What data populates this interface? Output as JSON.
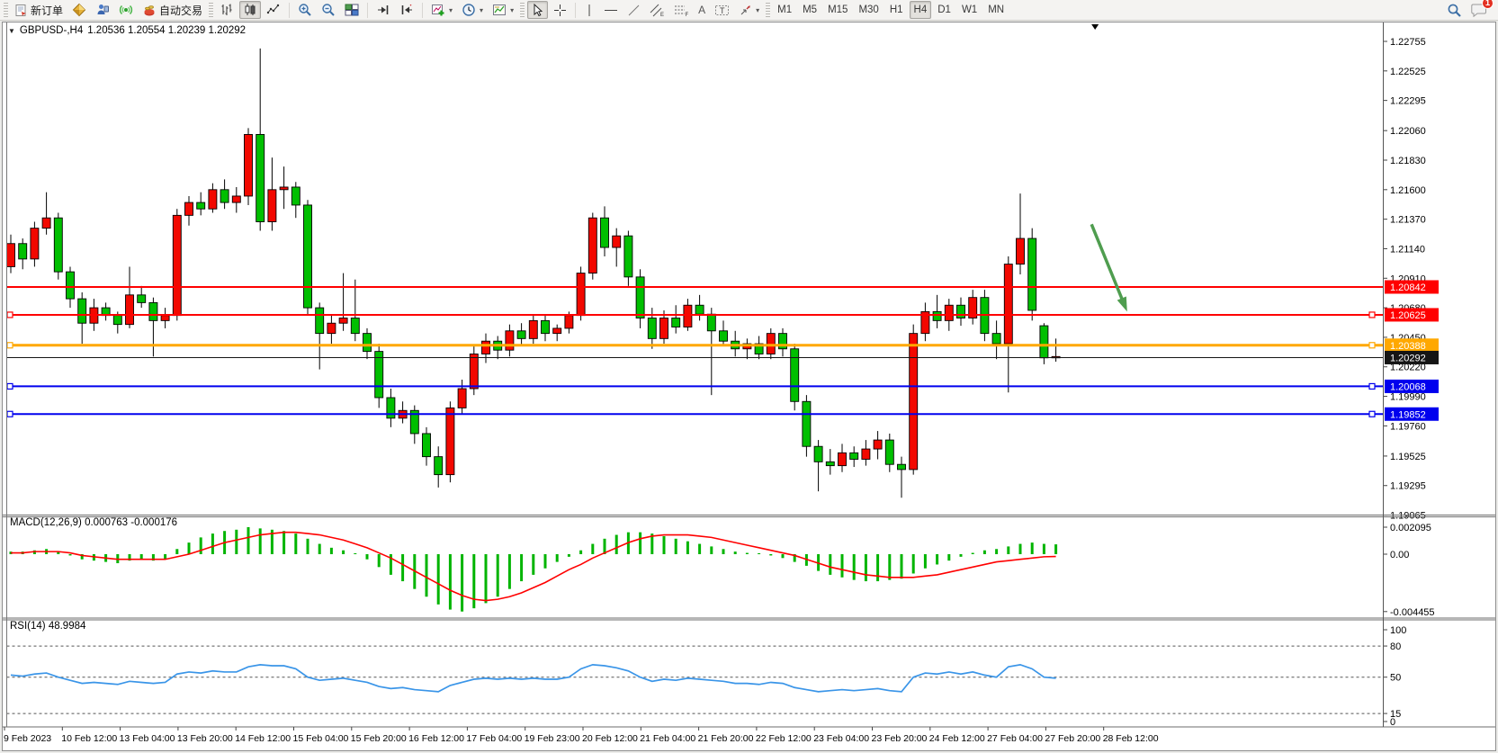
{
  "toolbar": {
    "new_order_label": "新订单",
    "auto_trading_label": "自动交易",
    "timeframes": [
      "M1",
      "M5",
      "M15",
      "M30",
      "H1",
      "H4",
      "D1",
      "W1",
      "MN"
    ],
    "active_timeframe": "H4",
    "notification_count": "1"
  },
  "chart": {
    "symbol_title": "GBPUSD-,H4",
    "ohlc_text": "1.20536 1.20554 1.20239 1.20292",
    "macd_label": "MACD(12,26,9) 0.000763 -0.000176",
    "rsi_label": "RSI(14) 48.9984"
  },
  "chart_data": {
    "type": "candlestick",
    "symbol": "GBPUSD-",
    "period": "H4",
    "colors": {
      "bull": "#f20800",
      "bear": "#00bf00",
      "wick": "#000000",
      "macd_hist": "#00b400",
      "macd_signal": "#ff0000",
      "rsi_line": "#3a95e8",
      "arrow": "#4f9d4f",
      "axis_text": "#000000"
    },
    "price_axis_ticks": [
      "1.22755",
      "1.22525",
      "1.22295",
      "1.22060",
      "1.21830",
      "1.21600",
      "1.21370",
      "1.21140",
      "1.20910",
      "1.20680",
      "1.20450",
      "1.20220",
      "1.19990",
      "1.19760",
      "1.19525",
      "1.19295",
      "1.19065"
    ],
    "horizontal_lines": [
      {
        "label": "1.20842",
        "price": 1.20842,
        "color": "#ff0000",
        "width": 2,
        "handles": false
      },
      {
        "label": "1.20625",
        "price": 1.20625,
        "color": "#ff0000",
        "width": 2,
        "handles": true
      },
      {
        "label": "1.20388",
        "price": 1.20388,
        "color": "#ffa800",
        "width": 3,
        "handles": true
      },
      {
        "label": "1.20292",
        "price": 1.20292,
        "color": "#151515",
        "width": 1,
        "handles": false
      },
      {
        "label": "1.20068",
        "price": 1.20068,
        "color": "#0000ee",
        "width": 2,
        "handles": true
      },
      {
        "label": "1.19852",
        "price": 1.19852,
        "color": "#0000ee",
        "width": 2,
        "handles": true
      }
    ],
    "date_labels": [
      "9 Feb 2023",
      "10 Feb 12:00",
      "13 Feb 04:00",
      "13 Feb 20:00",
      "14 Feb 12:00",
      "15 Feb 04:00",
      "15 Feb 20:00",
      "16 Feb 12:00",
      "17 Feb 04:00",
      "19 Feb 23:00",
      "20 Feb 12:00",
      "21 Feb 04:00",
      "21 Feb 20:00",
      "22 Feb 12:00",
      "23 Feb 04:00",
      "23 Feb 20:00",
      "24 Feb 12:00",
      "27 Feb 04:00",
      "27 Feb 20:00",
      "28 Feb 12:00"
    ],
    "candles": [
      [
        1.21,
        1.2125,
        1.2095,
        1.2118
      ],
      [
        1.2118,
        1.2122,
        1.2098,
        1.2106
      ],
      [
        1.2106,
        1.2135,
        1.21,
        1.213
      ],
      [
        1.213,
        1.2158,
        1.2125,
        1.2138
      ],
      [
        1.2138,
        1.2142,
        1.209,
        1.2096
      ],
      [
        1.2096,
        1.21,
        1.2068,
        1.2075
      ],
      [
        1.2075,
        1.208,
        1.204,
        1.2056
      ],
      [
        1.2056,
        1.2075,
        1.205,
        1.2068
      ],
      [
        1.2068,
        1.2072,
        1.2058,
        1.2062
      ],
      [
        1.2062,
        1.2065,
        1.2048,
        1.2055
      ],
      [
        1.2055,
        1.21,
        1.2052,
        1.2078
      ],
      [
        1.2078,
        1.2085,
        1.2068,
        1.2072
      ],
      [
        1.2072,
        1.2076,
        1.203,
        1.2058
      ],
      [
        1.2058,
        1.2068,
        1.2052,
        1.2062
      ],
      [
        1.2062,
        1.2145,
        1.2058,
        1.214
      ],
      [
        1.214,
        1.2155,
        1.2132,
        1.215
      ],
      [
        1.215,
        1.2158,
        1.214,
        1.2145
      ],
      [
        1.2145,
        1.2165,
        1.2142,
        1.216
      ],
      [
        1.216,
        1.2168,
        1.2145,
        1.215
      ],
      [
        1.215,
        1.2162,
        1.2142,
        1.2155
      ],
      [
        1.2155,
        1.2208,
        1.2148,
        1.2203
      ],
      [
        1.2203,
        1.227,
        1.2128,
        1.2135
      ],
      [
        1.2135,
        1.2185,
        1.2128,
        1.216
      ],
      [
        1.216,
        1.2178,
        1.2145,
        1.2162
      ],
      [
        1.2162,
        1.2166,
        1.2138,
        1.2148
      ],
      [
        1.2148,
        1.2152,
        1.2062,
        1.2068
      ],
      [
        1.2068,
        1.2072,
        1.202,
        1.2048
      ],
      [
        1.2048,
        1.2062,
        1.204,
        1.2056
      ],
      [
        1.2056,
        1.2095,
        1.205,
        1.206
      ],
      [
        1.206,
        1.209,
        1.2042,
        1.2048
      ],
      [
        1.2048,
        1.2052,
        1.2028,
        1.2034
      ],
      [
        1.2034,
        1.204,
        1.199,
        1.1998
      ],
      [
        1.1998,
        1.2005,
        1.1975,
        1.1982
      ],
      [
        1.1982,
        1.1995,
        1.1978,
        1.1988
      ],
      [
        1.1988,
        1.1992,
        1.1962,
        1.197
      ],
      [
        1.197,
        1.1975,
        1.1945,
        1.1952
      ],
      [
        1.1952,
        1.196,
        1.1928,
        1.1938
      ],
      [
        1.1938,
        1.1995,
        1.1932,
        1.199
      ],
      [
        1.199,
        1.2012,
        1.1985,
        1.2005
      ],
      [
        1.2005,
        1.2038,
        1.2,
        1.2032
      ],
      [
        1.2032,
        1.2048,
        1.2025,
        1.2042
      ],
      [
        1.2042,
        1.2046,
        1.2028,
        1.2035
      ],
      [
        1.2035,
        1.2055,
        1.203,
        1.205
      ],
      [
        1.205,
        1.2056,
        1.2038,
        1.2044
      ],
      [
        1.2044,
        1.2062,
        1.204,
        1.2058
      ],
      [
        1.2058,
        1.2062,
        1.2042,
        1.2048
      ],
      [
        1.2048,
        1.2055,
        1.2042,
        1.2052
      ],
      [
        1.2052,
        1.2065,
        1.2048,
        1.2062
      ],
      [
        1.2062,
        1.21,
        1.2058,
        1.2095
      ],
      [
        1.2095,
        1.2142,
        1.209,
        1.2138
      ],
      [
        1.2138,
        1.2147,
        1.2108,
        1.2115
      ],
      [
        1.2115,
        1.213,
        1.21,
        1.2124
      ],
      [
        1.2124,
        1.2128,
        1.2085,
        1.2092
      ],
      [
        1.2092,
        1.2098,
        1.2052,
        1.206
      ],
      [
        1.206,
        1.2068,
        1.2036,
        1.2044
      ],
      [
        1.2044,
        1.2066,
        1.204,
        1.206
      ],
      [
        1.206,
        1.207,
        1.2048,
        1.2053
      ],
      [
        1.2053,
        1.2075,
        1.205,
        1.207
      ],
      [
        1.207,
        1.2078,
        1.2058,
        1.2063
      ],
      [
        1.2063,
        1.2068,
        1.2,
        1.205
      ],
      [
        1.205,
        1.2058,
        1.2038,
        1.2042
      ],
      [
        1.2042,
        1.205,
        1.203,
        1.2036
      ],
      [
        1.2036,
        1.2044,
        1.2028,
        1.204
      ],
      [
        1.204,
        1.2046,
        1.2028,
        1.2032
      ],
      [
        1.2032,
        1.2052,
        1.2028,
        1.2048
      ],
      [
        1.2048,
        1.2052,
        1.203,
        1.2036
      ],
      [
        1.2036,
        1.204,
        1.1988,
        1.1995
      ],
      [
        1.1995,
        1.2,
        1.1952,
        1.196
      ],
      [
        1.196,
        1.1965,
        1.1925,
        1.1948
      ],
      [
        1.1948,
        1.1958,
        1.1938,
        1.1945
      ],
      [
        1.1945,
        1.1962,
        1.194,
        1.1955
      ],
      [
        1.1955,
        1.196,
        1.1944,
        1.195
      ],
      [
        1.195,
        1.1965,
        1.1945,
        1.1958
      ],
      [
        1.1958,
        1.1972,
        1.195,
        1.1965
      ],
      [
        1.1965,
        1.197,
        1.194,
        1.1946
      ],
      [
        1.1946,
        1.1952,
        1.192,
        1.1942
      ],
      [
        1.1942,
        1.2055,
        1.1938,
        1.2048
      ],
      [
        1.2048,
        1.2072,
        1.2042,
        1.2065
      ],
      [
        1.2065,
        1.2078,
        1.2052,
        1.2058
      ],
      [
        1.2058,
        1.2075,
        1.205,
        1.207
      ],
      [
        1.207,
        1.2076,
        1.2054,
        1.206
      ],
      [
        1.206,
        1.2082,
        1.2055,
        1.2076
      ],
      [
        1.2076,
        1.2082,
        1.2042,
        1.2048
      ],
      [
        1.2048,
        1.2058,
        1.2028,
        1.204
      ],
      [
        1.204,
        1.2108,
        1.2002,
        1.2102
      ],
      [
        1.2102,
        1.2157,
        1.2094,
        1.2122
      ],
      [
        1.2122,
        1.213,
        1.2058,
        1.2066
      ],
      [
        1.2054,
        1.2056,
        1.2024,
        1.2029
      ],
      [
        1.2029,
        1.2044,
        1.2026,
        1.203
      ]
    ],
    "macd": {
      "name": "MACD(12,26,9)",
      "current_macd": "0.000763",
      "current_signal": "-0.000176",
      "axis_labels": [
        "0.002095",
        "0.00",
        "-0.004455"
      ],
      "histogram": [
        0.0002,
        0.0002,
        0.0003,
        0.0004,
        0.0002,
        -0.0001,
        -0.0004,
        -0.0005,
        -0.0006,
        -0.0007,
        -0.0005,
        -0.0004,
        -0.0005,
        -0.0004,
        0.0004,
        0.0009,
        0.0013,
        0.0016,
        0.0018,
        0.0019,
        0.0021,
        0.002,
        0.0019,
        0.0018,
        0.0016,
        0.0012,
        0.0008,
        0.0005,
        0.0003,
        0.0,
        -0.0004,
        -0.001,
        -0.0016,
        -0.0021,
        -0.0027,
        -0.0033,
        -0.0039,
        -0.0043,
        -0.00445,
        -0.0042,
        -0.0038,
        -0.0033,
        -0.0027,
        -0.0021,
        -0.0016,
        -0.0011,
        -0.0006,
        -0.0002,
        0.0003,
        0.0008,
        0.0012,
        0.0015,
        0.0017,
        0.0017,
        0.0016,
        0.0014,
        0.0012,
        0.001,
        0.0008,
        0.0006,
        0.0004,
        0.0002,
        0.0001,
        0.0,
        -0.0001,
        -0.0003,
        -0.0006,
        -0.0009,
        -0.0013,
        -0.0016,
        -0.0018,
        -0.002,
        -0.0021,
        -0.0021,
        -0.002,
        -0.0019,
        -0.0015,
        -0.0011,
        -0.0008,
        -0.0005,
        -0.0002,
        0.0001,
        0.0003,
        0.0004,
        0.0006,
        0.0008,
        0.0009,
        0.0008,
        0.000763
      ],
      "signal": [
        0.0001,
        0.0001,
        0.0002,
        0.0002,
        0.0002,
        0.0001,
        -0.0001,
        -0.0002,
        -0.0003,
        -0.0004,
        -0.0004,
        -0.0004,
        -0.0004,
        -0.0004,
        -0.0002,
        0.0,
        0.0003,
        0.0006,
        0.0009,
        0.0011,
        0.0013,
        0.0015,
        0.0016,
        0.0017,
        0.0017,
        0.0016,
        0.0015,
        0.0013,
        0.0011,
        0.0008,
        0.0005,
        0.0001,
        -0.0003,
        -0.0008,
        -0.0013,
        -0.0018,
        -0.0023,
        -0.0028,
        -0.0032,
        -0.0035,
        -0.0036,
        -0.0035,
        -0.0033,
        -0.003,
        -0.0026,
        -0.0022,
        -0.0017,
        -0.0012,
        -0.0008,
        -0.0003,
        0.0001,
        0.0005,
        0.0009,
        0.0012,
        0.0014,
        0.0015,
        0.0015,
        0.0015,
        0.0014,
        0.0013,
        0.0011,
        0.0009,
        0.0007,
        0.0005,
        0.0003,
        0.0001,
        -0.0001,
        -0.0004,
        -0.0007,
        -0.001,
        -0.0012,
        -0.0014,
        -0.0016,
        -0.0017,
        -0.0018,
        -0.0018,
        -0.0018,
        -0.0017,
        -0.0016,
        -0.0014,
        -0.0012,
        -0.001,
        -0.0008,
        -0.0006,
        -0.0005,
        -0.0004,
        -0.0003,
        -0.0002,
        -0.000176
      ]
    },
    "rsi": {
      "name": "RSI(14)",
      "current": "48.9984",
      "level_labels": [
        "100",
        "80",
        "50",
        "15",
        "0"
      ],
      "dashed_levels": [
        80,
        50,
        15
      ],
      "values": [
        52,
        51,
        53,
        54,
        50,
        47,
        44,
        45,
        44,
        43,
        46,
        45,
        44,
        45,
        53,
        55,
        54,
        56,
        55,
        55,
        60,
        62,
        61,
        61,
        58,
        50,
        47,
        48,
        49,
        47,
        45,
        41,
        39,
        40,
        38,
        37,
        36,
        42,
        45,
        48,
        49,
        48,
        49,
        48,
        49,
        48,
        48,
        50,
        58,
        62,
        61,
        59,
        56,
        50,
        46,
        48,
        47,
        49,
        48,
        47,
        46,
        44,
        44,
        43,
        45,
        44,
        40,
        38,
        36,
        37,
        38,
        37,
        38,
        39,
        37,
        36,
        50,
        54,
        53,
        55,
        53,
        55,
        52,
        50,
        60,
        62,
        58,
        50,
        49
      ]
    },
    "annotation_arrow": {
      "from_bar": 91,
      "from_price": 1.2133,
      "to_bar": 94,
      "to_price": 1.2065
    },
    "shift_marker_bar": 91.3
  }
}
